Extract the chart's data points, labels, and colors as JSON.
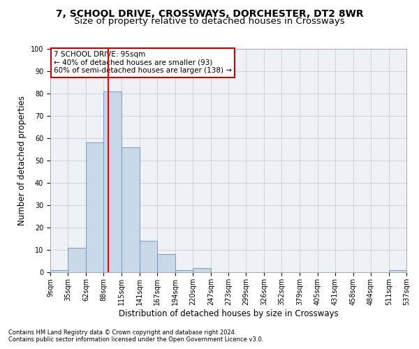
{
  "title": "7, SCHOOL DRIVE, CROSSWAYS, DORCHESTER, DT2 8WR",
  "subtitle": "Size of property relative to detached houses in Crossways",
  "xlabel": "Distribution of detached houses by size in Crossways",
  "ylabel": "Number of detached properties",
  "bin_edges": [
    9,
    35,
    62,
    88,
    115,
    141,
    167,
    194,
    220,
    247,
    273,
    299,
    326,
    352,
    379,
    405,
    431,
    458,
    484,
    511,
    537
  ],
  "bar_heights": [
    1,
    11,
    58,
    81,
    56,
    14,
    8,
    1,
    2,
    0,
    0,
    0,
    0,
    0,
    0,
    0,
    0,
    0,
    0,
    1
  ],
  "bar_color": "#c8d8e8",
  "bar_edge_color": "#7090b0",
  "red_line_x": 95,
  "ylim": [
    0,
    100
  ],
  "yticks": [
    0,
    10,
    20,
    30,
    40,
    50,
    60,
    70,
    80,
    90,
    100
  ],
  "annotation_text": "7 SCHOOL DRIVE: 95sqm\n← 40% of detached houses are smaller (93)\n60% of semi-detached houses are larger (138) →",
  "annotation_box_color": "#ffffff",
  "annotation_box_edge_color": "#cc0000",
  "footer_line1": "Contains HM Land Registry data © Crown copyright and database right 2024.",
  "footer_line2": "Contains public sector information licensed under the Open Government Licence v3.0.",
  "background_color": "#eef2f7",
  "grid_color": "#c8d0d8",
  "title_fontsize": 10,
  "subtitle_fontsize": 9.5,
  "ylabel_fontsize": 8.5,
  "xlabel_fontsize": 8.5,
  "tick_label_fontsize": 7,
  "annotation_fontsize": 7.5,
  "footer_fontsize": 6
}
